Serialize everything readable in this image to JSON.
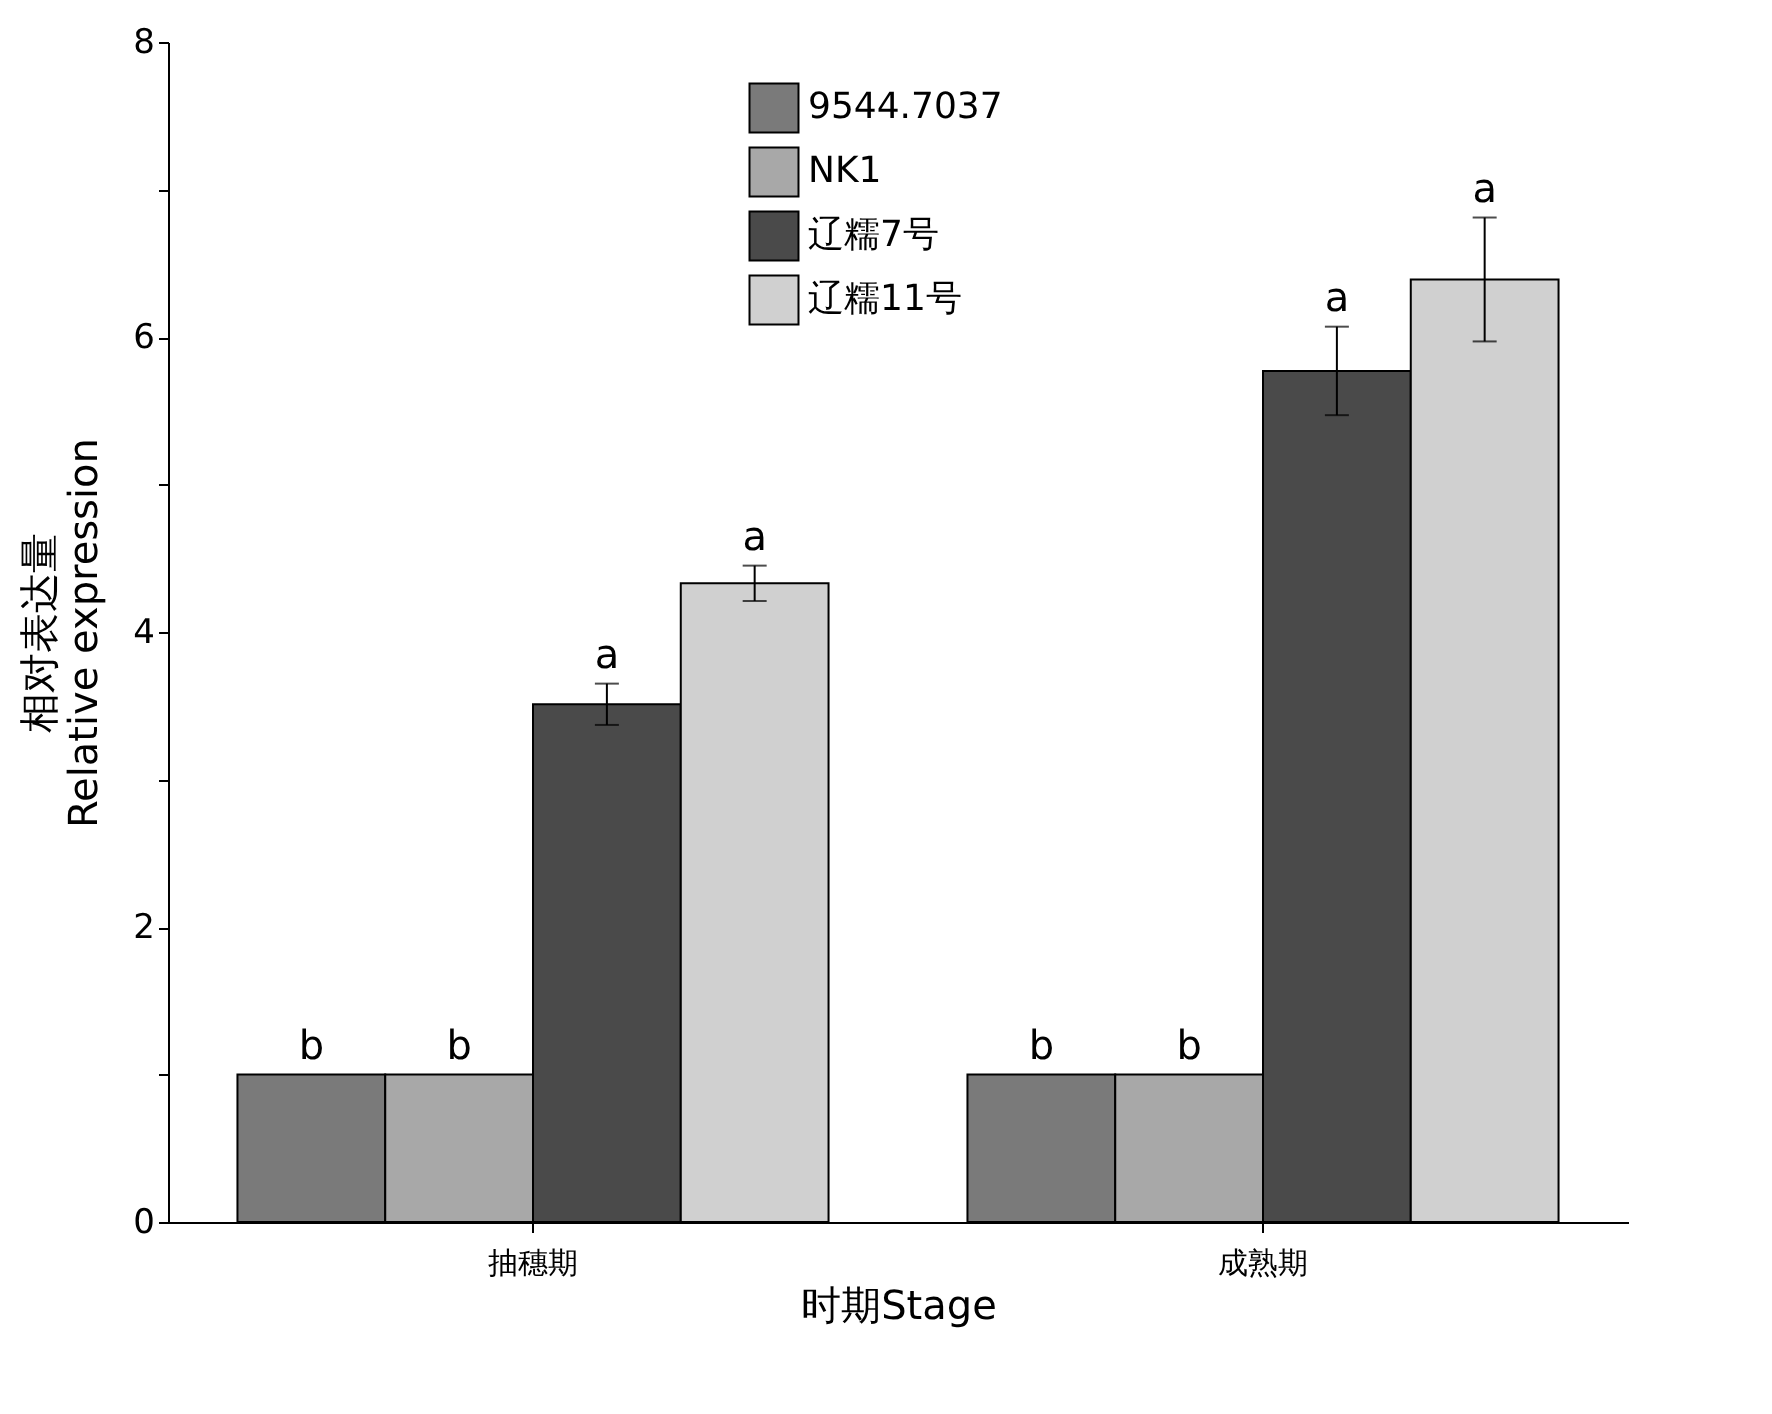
{
  "chart_data": {
    "type": "bar",
    "xlabel": "时期Stage",
    "ylabel": "相对表达量\nRelative expression",
    "categories": [
      "抽穗期",
      "成熟期"
    ],
    "series": [
      {
        "name": "9544.7037",
        "color": "#7a7a7a",
        "values": [
          1.0,
          1.0
        ],
        "value_labels": [
          "b",
          "b"
        ]
      },
      {
        "name": "NK1",
        "color": "#a8a8a8",
        "values": [
          1.0,
          1.0
        ],
        "value_labels": [
          "b",
          "b"
        ]
      },
      {
        "name": "辽糯7号",
        "color": "#4a4a4a",
        "values": [
          3.51,
          5.77
        ],
        "errors": [
          0.14,
          0.3
        ],
        "value_labels": [
          "a",
          "a"
        ]
      },
      {
        "name": "辽糯11号",
        "color": "#d0d0d0",
        "values": [
          4.33,
          6.39
        ],
        "errors": [
          0.12,
          0.42
        ],
        "value_labels": [
          "a",
          "a"
        ]
      }
    ],
    "ylim": [
      0,
      8
    ],
    "yticks": [
      0,
      {
        "value": 1,
        "label": null
      },
      2,
      {
        "value": 3,
        "label": null
      },
      4,
      {
        "value": 5,
        "label": null
      },
      6,
      {
        "value": 7,
        "label": null
      },
      8
    ],
    "grid": false,
    "legend": "top right"
  }
}
